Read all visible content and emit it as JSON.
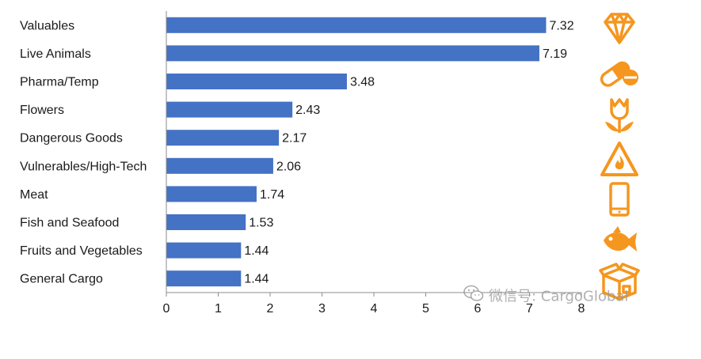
{
  "chart_data": {
    "type": "bar",
    "orientation": "horizontal",
    "categories": [
      "Valuables",
      "Live Animals",
      "Pharma/Temp",
      "Flowers",
      "Dangerous Goods",
      "Vulnerables/High-Tech",
      "Meat",
      "Fish and Seafood",
      "Fruits and Vegetables",
      "General Cargo"
    ],
    "values": [
      7.32,
      7.19,
      3.48,
      2.43,
      2.17,
      2.06,
      1.74,
      1.53,
      1.44,
      1.44
    ],
    "value_labels": [
      "7.32",
      "7.19",
      "3.48",
      "2.43",
      "2.17",
      "2.06",
      "1.74",
      "1.53",
      "1.44",
      "1.44"
    ],
    "xlim": [
      0,
      8
    ],
    "xticks": [
      "0",
      "1",
      "2",
      "3",
      "4",
      "5",
      "6",
      "7",
      "8"
    ],
    "grid": false,
    "bar_color": "#4472c4"
  },
  "icons": [
    "diamond-icon",
    "pill-icon",
    "tulip-icon",
    "hazard-fire-icon",
    "smartphone-icon",
    "fish-icon",
    "cargo-box-icon"
  ],
  "icon_color": "#f5961e",
  "watermark": {
    "text": "微信号: CargoGlobal"
  }
}
